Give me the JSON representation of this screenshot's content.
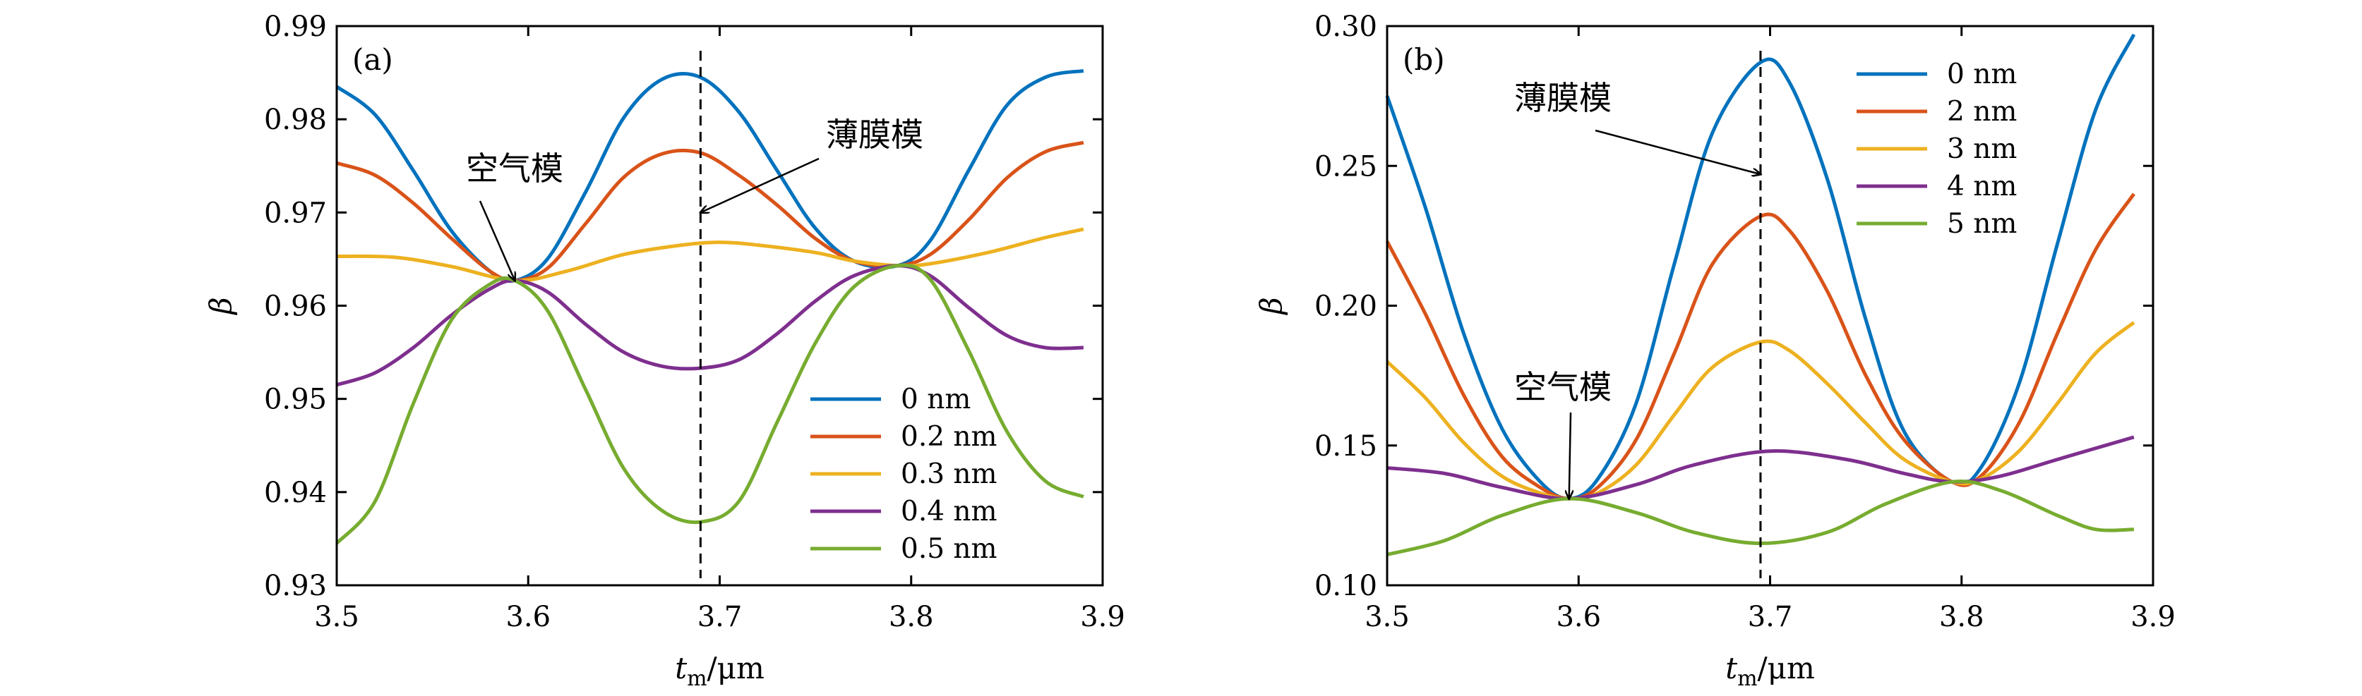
{
  "chart_data": [
    {
      "type": "line",
      "panel_label": "(a)",
      "xlabel": {
        "main": "t",
        "sub": "m",
        "unit": "/μm"
      },
      "ylabel": "β",
      "xlim": [
        3.5,
        3.9
      ],
      "ylim": [
        0.93,
        0.99
      ],
      "xticks": [
        "3.5",
        "3.6",
        "3.7",
        "3.8",
        "3.9"
      ],
      "yticks": [
        "0.93",
        "0.94",
        "0.95",
        "0.96",
        "0.97",
        "0.98",
        "0.99"
      ],
      "legend_position": "lower-right",
      "vline_x": 3.69,
      "annotations": [
        {
          "text": "空气模",
          "arrow_to": [
            3.593,
            0.9627
          ]
        },
        {
          "text": "薄膜模",
          "arrow_to": [
            3.69,
            0.97
          ]
        }
      ],
      "series": [
        {
          "name": "0 nm",
          "color": "#0072BD",
          "x": [
            3.5,
            3.52,
            3.54,
            3.56,
            3.58,
            3.593,
            3.61,
            3.63,
            3.65,
            3.67,
            3.69,
            3.71,
            3.73,
            3.75,
            3.77,
            3.793,
            3.81,
            3.83,
            3.85,
            3.87,
            3.89
          ],
          "y": [
            0.9835,
            0.9805,
            0.9745,
            0.968,
            0.9637,
            0.9627,
            0.965,
            0.9722,
            0.9802,
            0.9843,
            0.9845,
            0.9808,
            0.9745,
            0.9683,
            0.9648,
            0.9643,
            0.967,
            0.9745,
            0.9815,
            0.9845,
            0.9852
          ]
        },
        {
          "name": "0.2 nm",
          "color": "#D95319",
          "x": [
            3.5,
            3.52,
            3.54,
            3.56,
            3.58,
            3.593,
            3.61,
            3.63,
            3.65,
            3.67,
            3.69,
            3.71,
            3.73,
            3.75,
            3.77,
            3.793,
            3.81,
            3.83,
            3.85,
            3.87,
            3.89
          ],
          "y": [
            0.9753,
            0.974,
            0.971,
            0.9672,
            0.9637,
            0.9627,
            0.964,
            0.9688,
            0.9738,
            0.9763,
            0.9764,
            0.974,
            0.9708,
            0.9672,
            0.9648,
            0.9643,
            0.9655,
            0.9692,
            0.9737,
            0.9765,
            0.9775
          ]
        },
        {
          "name": "0.3 nm",
          "color": "#EDB120",
          "x": [
            3.5,
            3.53,
            3.56,
            3.593,
            3.62,
            3.65,
            3.68,
            3.7,
            3.72,
            3.75,
            3.77,
            3.793,
            3.81,
            3.84,
            3.87,
            3.89
          ],
          "y": [
            0.9653,
            0.9652,
            0.9642,
            0.9627,
            0.9637,
            0.9655,
            0.9665,
            0.9668,
            0.9665,
            0.9657,
            0.9648,
            0.9643,
            0.9645,
            0.9657,
            0.9673,
            0.9682
          ]
        },
        {
          "name": "0.4 nm",
          "color": "#7E2F8E",
          "x": [
            3.5,
            3.52,
            3.54,
            3.56,
            3.58,
            3.593,
            3.61,
            3.63,
            3.65,
            3.67,
            3.69,
            3.71,
            3.73,
            3.75,
            3.77,
            3.793,
            3.81,
            3.83,
            3.85,
            3.87,
            3.89
          ],
          "y": [
            0.9515,
            0.9528,
            0.9555,
            0.959,
            0.9618,
            0.9627,
            0.9615,
            0.958,
            0.955,
            0.9535,
            0.9533,
            0.9542,
            0.957,
            0.9605,
            0.9632,
            0.9643,
            0.9632,
            0.9598,
            0.9568,
            0.9555,
            0.9555
          ]
        },
        {
          "name": "0.5 nm",
          "color": "#77AC30",
          "x": [
            3.5,
            3.52,
            3.54,
            3.56,
            3.58,
            3.593,
            3.61,
            3.63,
            3.65,
            3.67,
            3.69,
            3.71,
            3.73,
            3.75,
            3.77,
            3.793,
            3.81,
            3.83,
            3.85,
            3.87,
            3.89
          ],
          "y": [
            0.9345,
            0.939,
            0.9495,
            0.9585,
            0.9623,
            0.9627,
            0.9595,
            0.951,
            0.9425,
            0.938,
            0.9368,
            0.939,
            0.9475,
            0.956,
            0.962,
            0.9643,
            0.9628,
            0.9552,
            0.9465,
            0.9412,
            0.9395
          ]
        }
      ]
    },
    {
      "type": "line",
      "panel_label": "(b)",
      "xlabel": {
        "main": "t",
        "sub": "m",
        "unit": "/μm"
      },
      "ylabel": "β",
      "xlim": [
        3.5,
        3.9
      ],
      "ylim": [
        0.1,
        0.3
      ],
      "xticks": [
        "3.5",
        "3.6",
        "3.7",
        "3.8",
        "3.9"
      ],
      "yticks": [
        "0.10",
        "0.15",
        "0.20",
        "0.25",
        "0.30"
      ],
      "legend_position": "top-right",
      "vline_x": 3.695,
      "annotations": [
        {
          "text": "薄膜模",
          "arrow_to": [
            3.695,
            0.247
          ]
        },
        {
          "text": "空气模",
          "arrow_to": [
            3.595,
            0.131
          ]
        }
      ],
      "series": [
        {
          "name": "0 nm",
          "color": "#0072BD",
          "x": [
            3.5,
            3.52,
            3.54,
            3.56,
            3.58,
            3.595,
            3.61,
            3.63,
            3.65,
            3.67,
            3.695,
            3.71,
            3.73,
            3.75,
            3.77,
            3.795,
            3.81,
            3.83,
            3.85,
            3.87,
            3.89
          ],
          "y": [
            0.275,
            0.235,
            0.19,
            0.156,
            0.137,
            0.131,
            0.138,
            0.165,
            0.215,
            0.262,
            0.287,
            0.28,
            0.245,
            0.195,
            0.155,
            0.137,
            0.142,
            0.172,
            0.222,
            0.27,
            0.297
          ]
        },
        {
          "name": "2 nm",
          "color": "#D95319",
          "x": [
            3.5,
            3.52,
            3.54,
            3.56,
            3.58,
            3.595,
            3.61,
            3.63,
            3.65,
            3.67,
            3.695,
            3.71,
            3.73,
            3.75,
            3.77,
            3.795,
            3.81,
            3.83,
            3.85,
            3.87,
            3.89
          ],
          "y": [
            0.223,
            0.197,
            0.168,
            0.146,
            0.135,
            0.131,
            0.135,
            0.152,
            0.183,
            0.215,
            0.232,
            0.227,
            0.205,
            0.175,
            0.152,
            0.137,
            0.139,
            0.158,
            0.19,
            0.22,
            0.24
          ]
        },
        {
          "name": "3 nm",
          "color": "#EDB120",
          "x": [
            3.5,
            3.52,
            3.54,
            3.56,
            3.58,
            3.595,
            3.61,
            3.63,
            3.65,
            3.67,
            3.695,
            3.71,
            3.73,
            3.75,
            3.77,
            3.795,
            3.81,
            3.83,
            3.85,
            3.87,
            3.89
          ],
          "y": [
            0.18,
            0.167,
            0.151,
            0.139,
            0.133,
            0.131,
            0.133,
            0.143,
            0.161,
            0.178,
            0.187,
            0.184,
            0.172,
            0.158,
            0.145,
            0.137,
            0.138,
            0.148,
            0.165,
            0.183,
            0.194
          ]
        },
        {
          "name": "4 nm",
          "color": "#7E2F8E",
          "x": [
            3.5,
            3.53,
            3.56,
            3.595,
            3.63,
            3.66,
            3.7,
            3.74,
            3.77,
            3.795,
            3.82,
            3.85,
            3.89
          ],
          "y": [
            0.142,
            0.14,
            0.135,
            0.131,
            0.136,
            0.143,
            0.148,
            0.145,
            0.14,
            0.137,
            0.139,
            0.145,
            0.153
          ]
        },
        {
          "name": "5 nm",
          "color": "#77AC30",
          "x": [
            3.5,
            3.53,
            3.56,
            3.595,
            3.63,
            3.66,
            3.695,
            3.73,
            3.76,
            3.795,
            3.82,
            3.85,
            3.87,
            3.89
          ],
          "y": [
            0.111,
            0.116,
            0.125,
            0.131,
            0.126,
            0.119,
            0.115,
            0.119,
            0.129,
            0.137,
            0.134,
            0.125,
            0.12,
            0.12
          ]
        }
      ]
    }
  ]
}
